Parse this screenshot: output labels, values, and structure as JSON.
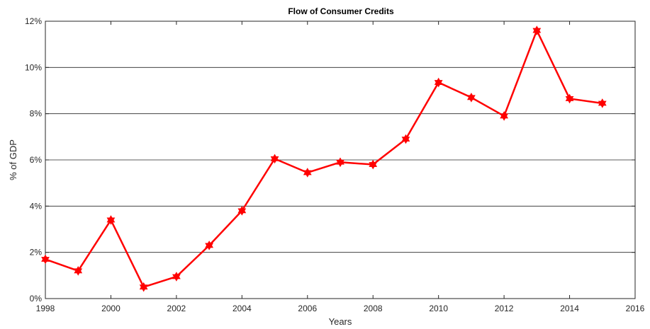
{
  "chart_data": {
    "type": "line",
    "title": "Flow of Consumer Credits",
    "xlabel": "Years",
    "ylabel": "% of GDP",
    "xlim": [
      1998,
      2016
    ],
    "ylim": [
      0,
      12
    ],
    "x_ticks": [
      1998,
      2000,
      2002,
      2004,
      2006,
      2008,
      2010,
      2012,
      2014,
      2016
    ],
    "x_tick_labels": [
      "1998",
      "2000",
      "2002",
      "2004",
      "2006",
      "2008",
      "2010",
      "2012",
      "2014",
      "2016"
    ],
    "y_ticks": [
      0,
      2,
      4,
      6,
      8,
      10,
      12
    ],
    "y_tick_labels": [
      "0%",
      "2%",
      "4%",
      "6%",
      "8%",
      "10%",
      "12%"
    ],
    "grid": "horizontal",
    "line_color": "#ff0000",
    "marker": "hexagram",
    "series": [
      {
        "x": [
          1998,
          1999,
          2000,
          2001,
          2002,
          2003,
          2004,
          2005,
          2006,
          2007,
          2008,
          2009,
          2010,
          2011,
          2012,
          2013,
          2014,
          2015
        ],
        "values": [
          1.7,
          1.2,
          3.4,
          0.5,
          0.95,
          2.3,
          3.8,
          6.05,
          5.45,
          5.9,
          5.8,
          6.9,
          9.35,
          8.7,
          7.9,
          11.6,
          8.65,
          8.45
        ]
      }
    ]
  }
}
